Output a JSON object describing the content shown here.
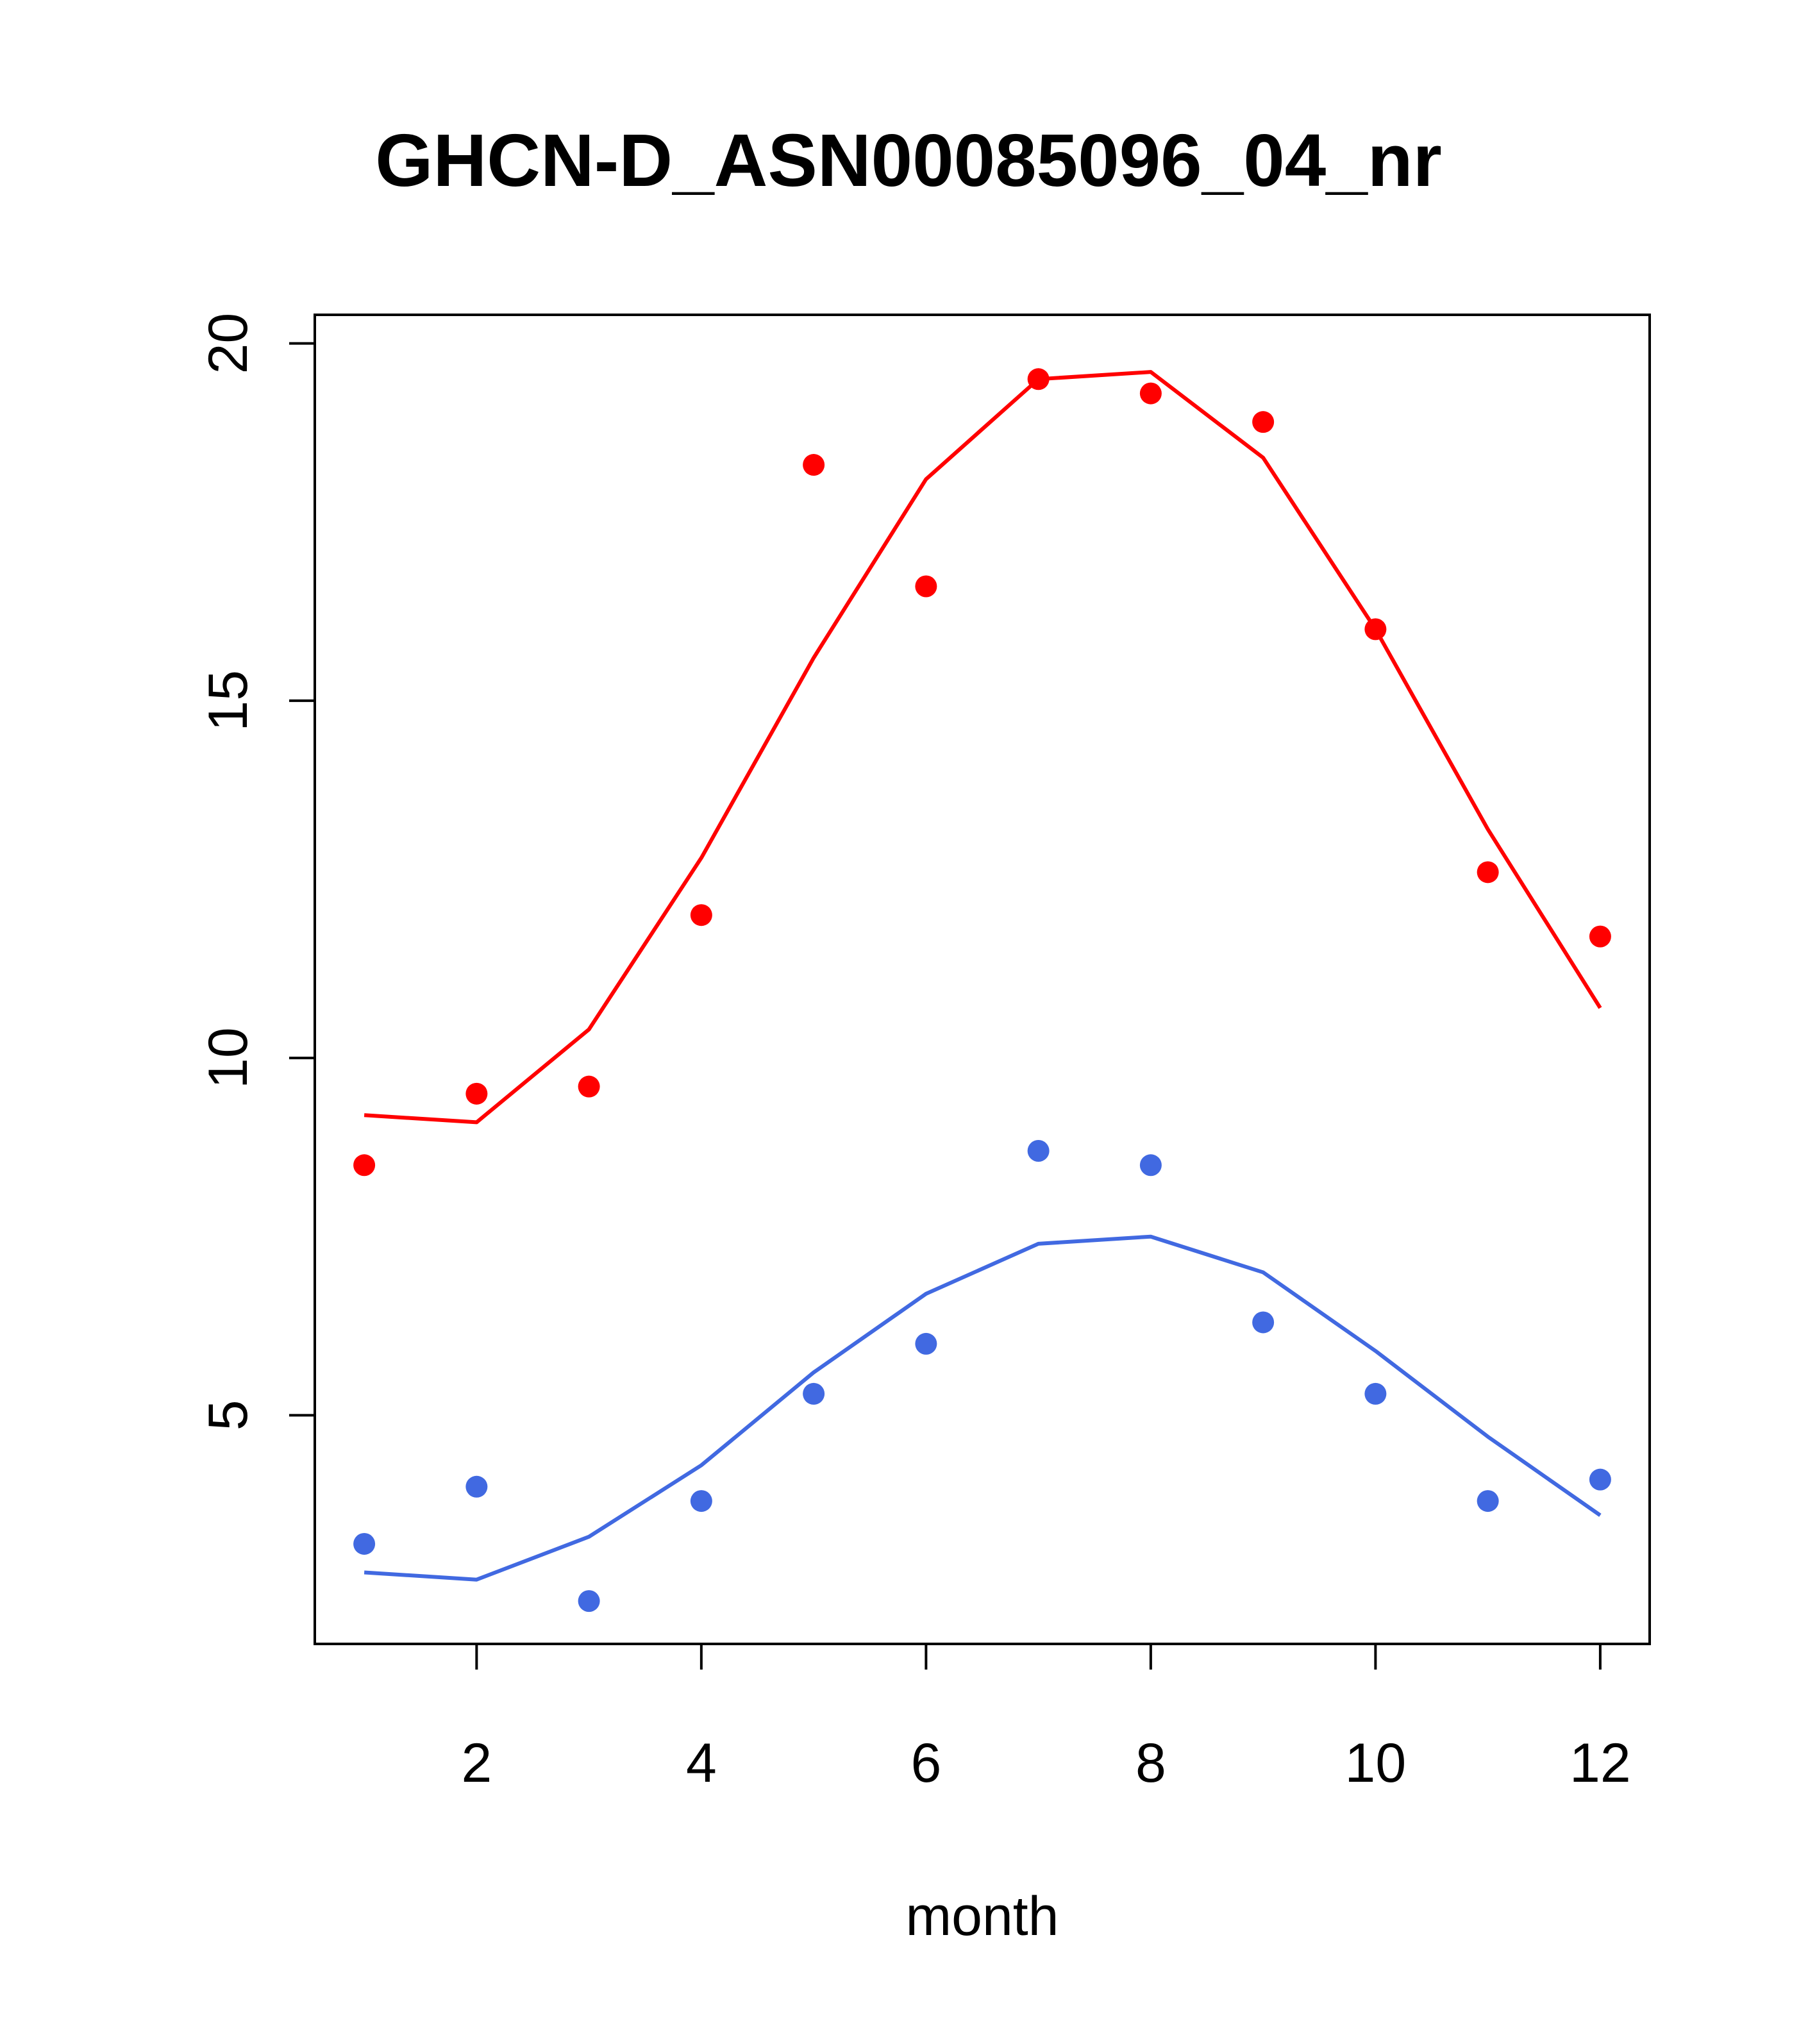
{
  "chart_data": {
    "type": "line",
    "title": "GHCN-D_ASN00085096_04_nr",
    "xlabel": "month",
    "ylabel": "",
    "xlim": [
      0.56,
      12.44
    ],
    "ylim": [
      1.8,
      20.4
    ],
    "xticks": [
      2,
      4,
      6,
      8,
      10,
      12
    ],
    "yticks": [
      5,
      10,
      15,
      20
    ],
    "grid": false,
    "legend": "none",
    "x": [
      1,
      2,
      3,
      4,
      5,
      6,
      7,
      8,
      9,
      10,
      11,
      12
    ],
    "series": [
      {
        "color": "#ff0000",
        "points": [
          8.5,
          9.5,
          9.6,
          12.0,
          18.3,
          16.6,
          19.5,
          19.3,
          18.9,
          16.0,
          12.6,
          11.7
        ],
        "line": [
          9.2,
          9.1,
          10.4,
          12.8,
          15.6,
          18.1,
          19.5,
          19.6,
          18.4,
          16.0,
          13.2,
          10.7
        ]
      },
      {
        "color": "#4169e1",
        "points": [
          3.2,
          4.0,
          2.4,
          3.8,
          5.3,
          6.0,
          8.7,
          8.5,
          6.3,
          5.3,
          3.8,
          4.1
        ],
        "line": [
          2.8,
          2.7,
          3.3,
          4.3,
          5.6,
          6.7,
          7.4,
          7.5,
          7.0,
          5.9,
          4.7,
          3.6
        ]
      }
    ]
  }
}
